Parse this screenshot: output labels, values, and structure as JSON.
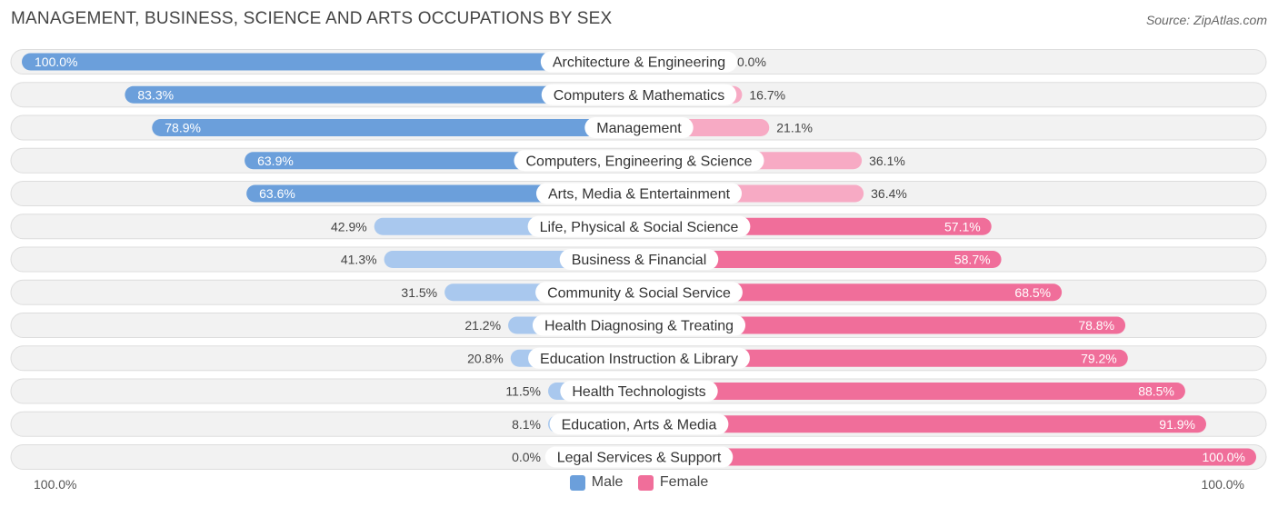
{
  "header": {
    "title": "MANAGEMENT, BUSINESS, SCIENCE AND ARTS OCCUPATIONS BY SEX",
    "source": "Source: ZipAtlas.com"
  },
  "axis": {
    "left_label": "100.0%",
    "right_label": "100.0%"
  },
  "legend": {
    "male_label": "Male",
    "female_label": "Female"
  },
  "colors": {
    "male_strong": "#6b9fdb",
    "male_light": "#a9c8ee",
    "female_strong": "#f06e9a",
    "female_light": "#f7aac4",
    "row_bg": "#f2f2f2",
    "row_border": "#dddddd"
  },
  "chart_data": {
    "type": "bar",
    "orientation": "horizontal-diverging",
    "title": "MANAGEMENT, BUSINESS, SCIENCE AND ARTS OCCUPATIONS BY SEX",
    "xlim": [
      -100,
      100
    ],
    "categories": [
      "Architecture & Engineering",
      "Computers & Mathematics",
      "Management",
      "Computers, Engineering & Science",
      "Arts, Media & Entertainment",
      "Life, Physical & Social Science",
      "Business & Financial",
      "Community & Social Service",
      "Health Diagnosing & Treating",
      "Education Instruction & Library",
      "Health Technologists",
      "Education, Arts & Media",
      "Legal Services & Support"
    ],
    "series": [
      {
        "name": "Male",
        "values": [
          100.0,
          83.3,
          78.9,
          63.9,
          63.6,
          42.9,
          41.3,
          31.5,
          21.2,
          20.8,
          11.5,
          8.1,
          0.0
        ],
        "labels": [
          "100.0%",
          "83.3%",
          "78.9%",
          "63.9%",
          "63.6%",
          "42.9%",
          "41.3%",
          "31.5%",
          "21.2%",
          "20.8%",
          "11.5%",
          "8.1%",
          "0.0%"
        ]
      },
      {
        "name": "Female",
        "values": [
          0.0,
          16.7,
          21.1,
          36.1,
          36.4,
          57.1,
          58.7,
          68.5,
          78.8,
          79.2,
          88.5,
          91.9,
          100.0
        ],
        "labels": [
          "0.0%",
          "16.7%",
          "21.1%",
          "36.1%",
          "36.4%",
          "57.1%",
          "58.7%",
          "68.5%",
          "78.8%",
          "79.2%",
          "88.5%",
          "91.9%",
          "100.0%"
        ]
      }
    ]
  }
}
